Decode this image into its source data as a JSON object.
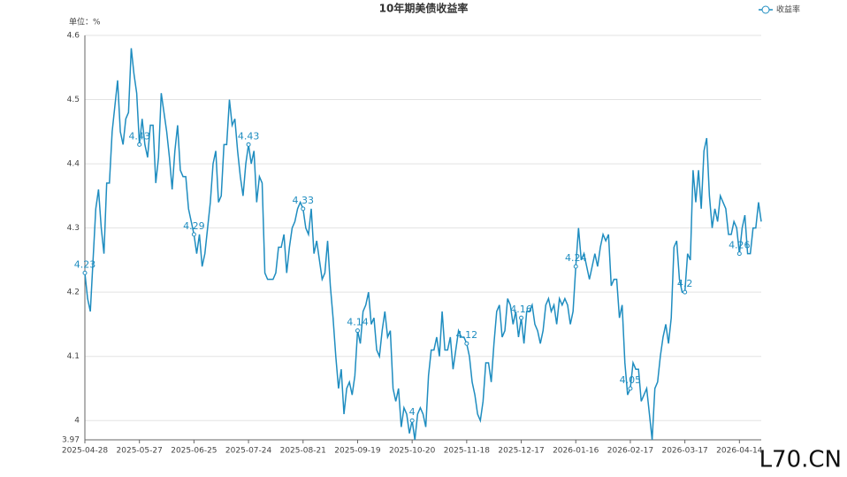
{
  "chart_data": {
    "type": "line",
    "title": "10年期美债收益率",
    "y_unit_label": "单位：%",
    "watermark": "L70.CN",
    "ylim": [
      3.97,
      4.6
    ],
    "yticks": [
      3.97,
      4,
      4.1,
      4.2,
      4.3,
      4.4,
      4.5,
      4.6
    ],
    "grid": true,
    "legend": "top-right",
    "categories": [
      "2025-04-28",
      null,
      null,
      null,
      null,
      null,
      null,
      null,
      null,
      null,
      null,
      null,
      null,
      null,
      null,
      null,
      null,
      null,
      null,
      null,
      "2025-05-27",
      null,
      null,
      null,
      null,
      null,
      null,
      null,
      null,
      null,
      null,
      null,
      null,
      null,
      null,
      null,
      null,
      null,
      null,
      null,
      "2025-06-25",
      null,
      null,
      null,
      null,
      null,
      null,
      null,
      null,
      null,
      null,
      null,
      null,
      null,
      null,
      null,
      null,
      null,
      null,
      null,
      "2025-07-24",
      null,
      null,
      null,
      null,
      null,
      null,
      null,
      null,
      null,
      null,
      null,
      null,
      null,
      null,
      null,
      null,
      null,
      null,
      null,
      "2025-08-21",
      null,
      null,
      null,
      null,
      null,
      null,
      null,
      null,
      null,
      null,
      null,
      null,
      null,
      null,
      null,
      null,
      null,
      null,
      null,
      "2025-09-19",
      null,
      null,
      null,
      null,
      null,
      null,
      null,
      null,
      null,
      null,
      null,
      null,
      null,
      null,
      null,
      null,
      null,
      null,
      null,
      "2025-10-20",
      null,
      null,
      null,
      null,
      null,
      null,
      null,
      null,
      null,
      null,
      null,
      null,
      null,
      null,
      null,
      null,
      null,
      null,
      null,
      "2025-11-18",
      null,
      null,
      null,
      null,
      null,
      null,
      null,
      null,
      null,
      null,
      null,
      null,
      null,
      null,
      null,
      null,
      null,
      null,
      null,
      "2025-12-17",
      null,
      null,
      null,
      null,
      null,
      null,
      null,
      null,
      null,
      null,
      null,
      null,
      null,
      null,
      null,
      null,
      null,
      null,
      null,
      "2026-01-16",
      null,
      null,
      null,
      null,
      null,
      null,
      null,
      null,
      null,
      null,
      null,
      null,
      null,
      null,
      null,
      null,
      null,
      null,
      null,
      "2026-02-17",
      null,
      null,
      null,
      null,
      null,
      null,
      null,
      null,
      null,
      null,
      null,
      null,
      null,
      null,
      null,
      null,
      null,
      null,
      null,
      "2026-03-17",
      null,
      null,
      null,
      null,
      null,
      null,
      null,
      null,
      null,
      null,
      null,
      null,
      null,
      null,
      null,
      null,
      null,
      null,
      null,
      "2026-04-14",
      null,
      null,
      null,
      null,
      null,
      null,
      null,
      null
    ],
    "series": [
      {
        "name": "收益率",
        "color": "#1f8dc0",
        "values": [
          4.23,
          4.19,
          4.17,
          4.25,
          4.33,
          4.36,
          4.3,
          4.26,
          4.37,
          4.37,
          4.45,
          4.49,
          4.53,
          4.45,
          4.43,
          4.47,
          4.48,
          4.58,
          4.54,
          4.51,
          4.43,
          4.47,
          4.43,
          4.41,
          4.46,
          4.46,
          4.37,
          4.41,
          4.51,
          4.48,
          4.45,
          4.41,
          4.36,
          4.42,
          4.46,
          4.39,
          4.38,
          4.38,
          4.33,
          4.31,
          4.29,
          4.26,
          4.29,
          4.24,
          4.26,
          4.3,
          4.34,
          4.4,
          4.42,
          4.34,
          4.35,
          4.43,
          4.43,
          4.5,
          4.46,
          4.47,
          4.42,
          4.38,
          4.35,
          4.4,
          4.43,
          4.4,
          4.42,
          4.34,
          4.38,
          4.37,
          4.23,
          4.22,
          4.22,
          4.22,
          4.23,
          4.27,
          4.27,
          4.29,
          4.23,
          4.27,
          4.3,
          4.31,
          4.33,
          4.34,
          4.33,
          4.3,
          4.29,
          4.33,
          4.26,
          4.28,
          4.25,
          4.22,
          4.23,
          4.28,
          4.21,
          4.16,
          4.1,
          4.05,
          4.08,
          4.01,
          4.05,
          4.06,
          4.04,
          4.07,
          4.14,
          4.12,
          4.17,
          4.18,
          4.2,
          4.15,
          4.16,
          4.11,
          4.1,
          4.14,
          4.17,
          4.13,
          4.14,
          4.05,
          4.03,
          4.05,
          3.99,
          4.02,
          4.01,
          3.98,
          4.0,
          3.97,
          4.01,
          4.02,
          4.01,
          3.99,
          4.07,
          4.11,
          4.11,
          4.13,
          4.1,
          4.17,
          4.11,
          4.11,
          4.13,
          4.08,
          4.11,
          4.14,
          4.13,
          4.13,
          4.12,
          4.1,
          4.06,
          4.04,
          4.01,
          4.0,
          4.03,
          4.09,
          4.09,
          4.06,
          4.12,
          4.17,
          4.18,
          4.13,
          4.14,
          4.19,
          4.18,
          4.15,
          4.17,
          4.13,
          4.16,
          4.12,
          4.17,
          4.17,
          4.18,
          4.15,
          4.14,
          4.12,
          4.14,
          4.18,
          4.19,
          4.17,
          4.18,
          4.15,
          4.19,
          4.18,
          4.19,
          4.18,
          4.15,
          4.17,
          4.24,
          4.3,
          4.25,
          4.26,
          4.24,
          4.22,
          4.24,
          4.26,
          4.24,
          4.27,
          4.29,
          4.28,
          4.29,
          4.21,
          4.22,
          4.22,
          4.16,
          4.18,
          4.09,
          4.04,
          4.05,
          4.09,
          4.08,
          4.08,
          4.03,
          4.04,
          4.05,
          4.01,
          3.97,
          4.05,
          4.06,
          4.1,
          4.13,
          4.15,
          4.12,
          4.16,
          4.27,
          4.28,
          4.22,
          4.2,
          4.2,
          4.26,
          4.25,
          4.39,
          4.34,
          4.39,
          4.33,
          4.42,
          4.44,
          4.35,
          4.3,
          4.33,
          4.31,
          4.35,
          4.34,
          4.33,
          4.29,
          4.29,
          4.31,
          4.3,
          4.26,
          4.3,
          4.32,
          4.26,
          4.26,
          4.3,
          4.3,
          4.34,
          4.31
        ]
      }
    ]
  }
}
